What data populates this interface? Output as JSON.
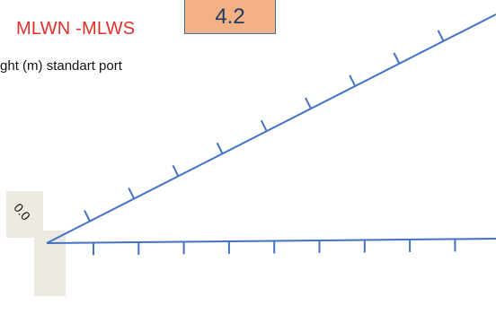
{
  "header": {
    "title": "MLWN -MLWS",
    "value": "4.2",
    "subtitle": "height (m) standart port"
  },
  "diagram": {
    "origin_label": "0.0",
    "line_color": "#4472c4",
    "box_color": "#f4b183",
    "label_bg_color": "#eceae1",
    "upper_ticks": 9,
    "lower_ticks": 9
  }
}
